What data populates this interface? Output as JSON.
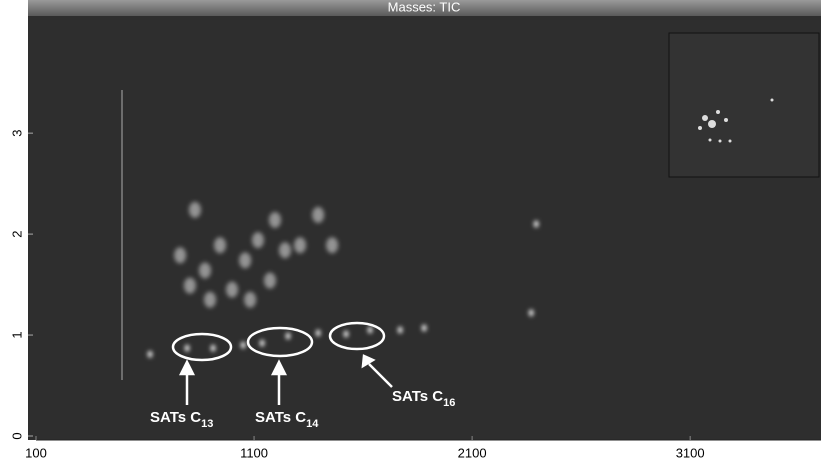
{
  "chart_data": {
    "type": "scatter",
    "title": "Masses: TIC",
    "xlim": [
      100,
      3700
    ],
    "xticks": [
      100,
      1100,
      2100,
      3100
    ],
    "ylim": [
      0,
      4.2
    ],
    "yticks": [
      0,
      1,
      2,
      3
    ],
    "series": [
      {
        "color": "#e6e6e6",
        "x": [
          623,
          793,
          912,
          1050,
          1137,
          1256,
          1394,
          1522,
          1632,
          1770,
          1880,
          2371,
          2394
        ],
        "values": [
          0.81,
          0.87,
          0.87,
          0.9,
          0.92,
          0.99,
          1.02,
          1.01,
          1.05,
          1.05,
          1.07,
          1.22,
          2.1
        ]
      },
      {
        "color": "#bdbdbd",
        "x": [
          761,
          829,
          875,
          944,
          999,
          1059,
          1118,
          1173,
          1242,
          1311,
          898,
          1082,
          1394,
          1458,
          806,
          1196
        ],
        "values": [
          1.79,
          2.24,
          1.64,
          1.89,
          1.45,
          1.74,
          1.94,
          1.54,
          1.84,
          1.89,
          1.35,
          1.35,
          2.19,
          1.89,
          1.49,
          2.14
        ]
      }
    ],
    "annotations": [
      {
        "text": "SATs C",
        "sub": "13"
      },
      {
        "text": "SATs C",
        "sub": "14"
      },
      {
        "text": "SATs C",
        "sub": "16"
      }
    ]
  }
}
